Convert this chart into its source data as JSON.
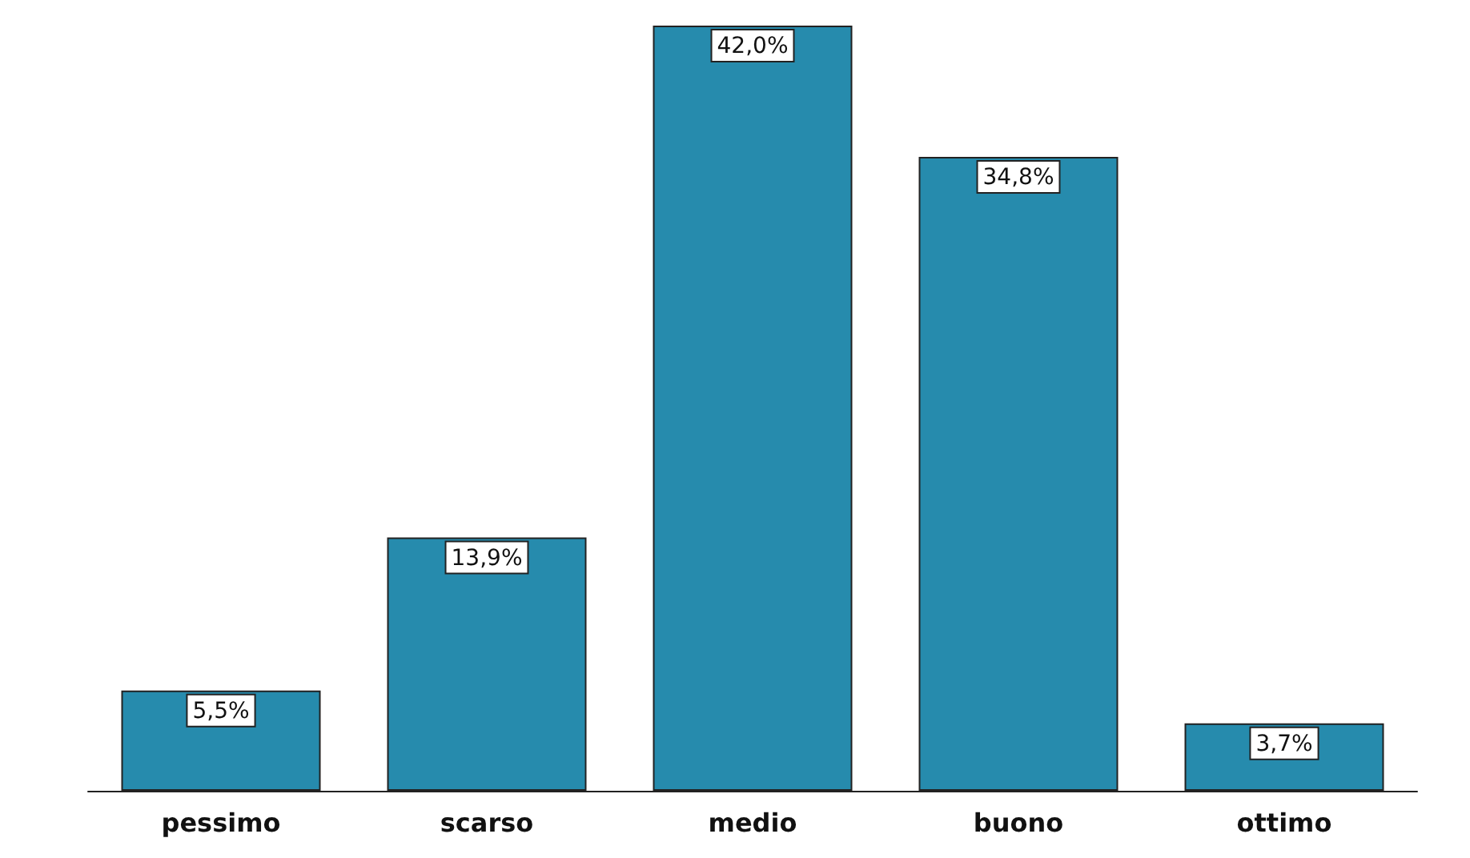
{
  "chart_data": {
    "type": "bar",
    "categories": [
      "pessimo",
      "scarso",
      "medio",
      "buono",
      "ottimo"
    ],
    "values": [
      5.5,
      13.9,
      42.0,
      34.8,
      3.7
    ],
    "value_labels": [
      "5,5%",
      "13,9%",
      "42,0%",
      "34,8%",
      "3,7%"
    ],
    "color": "#268bad"
  }
}
